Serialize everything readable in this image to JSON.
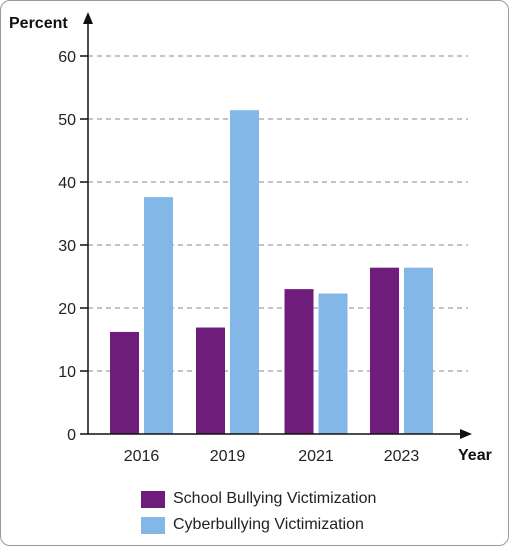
{
  "chart_data": {
    "type": "bar",
    "ylabel": "Percent",
    "xlabel": "Year",
    "categories": [
      "2016",
      "2019",
      "2021",
      "2023"
    ],
    "series": [
      {
        "name": "School Bullying Victimization",
        "values": [
          16.2,
          16.9,
          23.0,
          26.4
        ],
        "color": "#6f1d7b"
      },
      {
        "name": "Cyberbullying Victimization",
        "values": [
          37.6,
          51.4,
          22.3,
          26.4
        ],
        "color": "#82b7e8"
      }
    ],
    "ylim": [
      0,
      60
    ],
    "yticks": [
      0,
      10,
      20,
      30,
      40,
      50,
      60
    ],
    "grid": true,
    "legend_position": "bottom"
  }
}
